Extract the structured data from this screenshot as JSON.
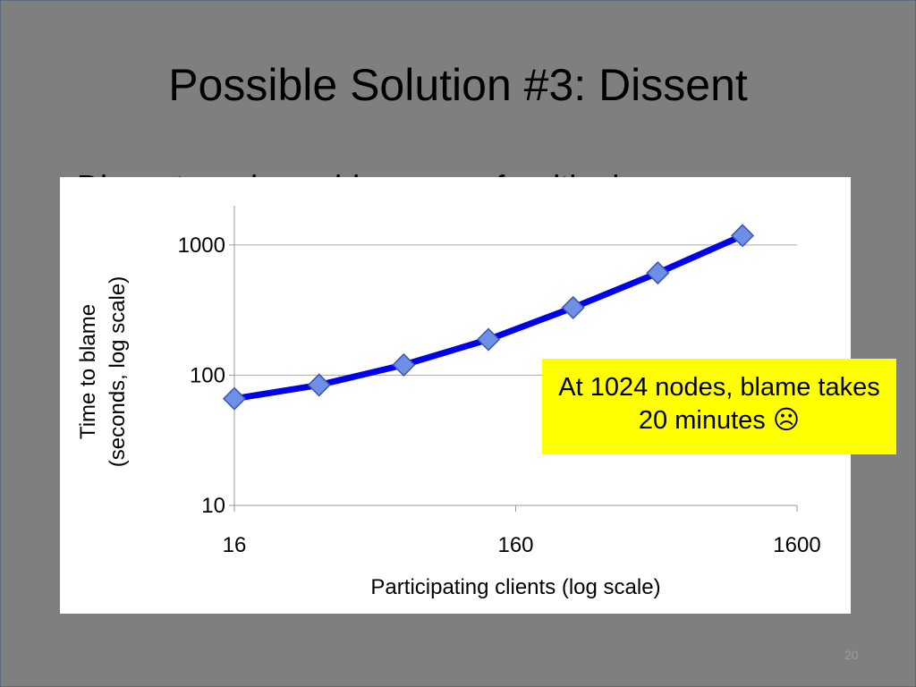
{
  "slide": {
    "title": "Possible Solution #3: Dissent",
    "partial_bullet": "Dissent produces blame proofs with chosen…",
    "page_number": "20"
  },
  "callout": {
    "text": "At 1024 nodes, blame takes 20 minutes ☹"
  },
  "chart_data": {
    "type": "line",
    "x_scale": "log",
    "y_scale": "log",
    "xlabel": "Participating clients (log scale)",
    "ylabel_lines": [
      "Time to blame",
      "(seconds, log scale)"
    ],
    "x_ticks": [
      16,
      160,
      1600
    ],
    "y_ticks": [
      10,
      100,
      1000
    ],
    "xlim": [
      16,
      1600
    ],
    "ylim": [
      10,
      2000
    ],
    "grid": "horizontal",
    "legend": "none",
    "series": [
      {
        "x": [
          16,
          32,
          64,
          128,
          256,
          512,
          1024
        ],
        "y": [
          66,
          84,
          120,
          188,
          330,
          610,
          1180
        ]
      }
    ],
    "colors": {
      "line": "#0000ee",
      "marker_fill": "#6f8fe6",
      "marker_stroke": "#3a56b0",
      "grid": "#aaaaaa",
      "axis": "#999999"
    }
  }
}
